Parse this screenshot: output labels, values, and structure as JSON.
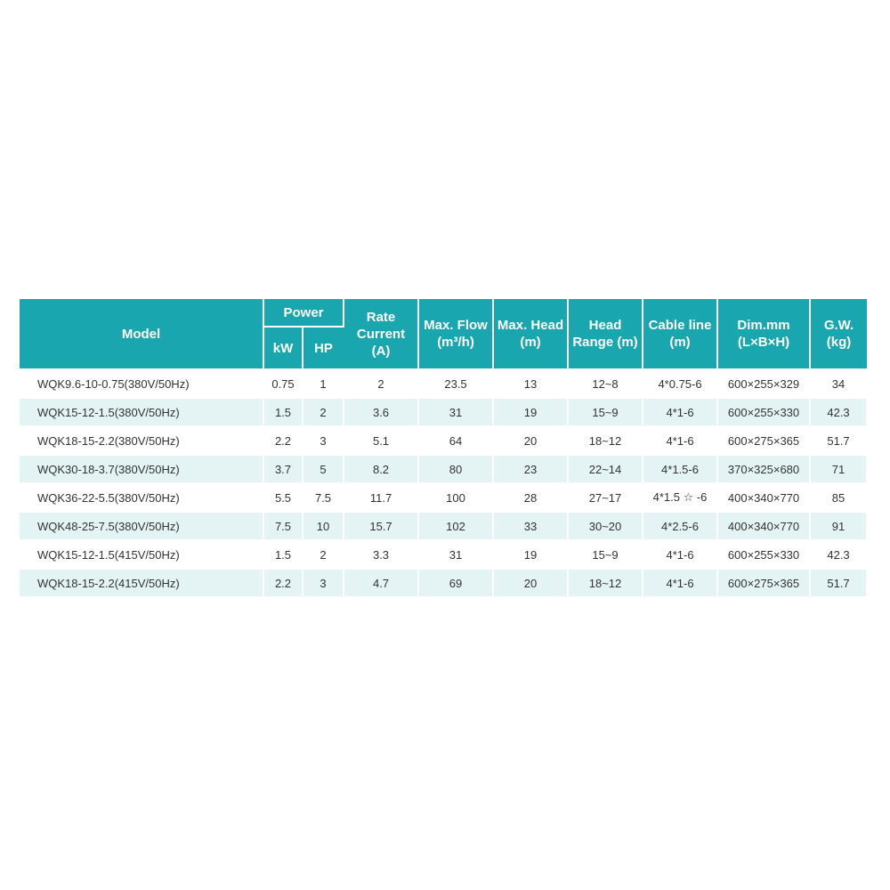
{
  "table": {
    "headers": {
      "model": "Model",
      "power": "Power",
      "kw": "kW",
      "hp": "HP",
      "rate_current": "Rate Current (A)",
      "max_flow": "Max. Flow (m³/h)",
      "max_head": "Max. Head (m)",
      "head_range": "Head Range (m)",
      "cable_line": "Cable line (m)",
      "dim": "Dim.mm (L×B×H)",
      "gw": "G.W. (kg)"
    },
    "rows": [
      [
        "WQK9.6-10-0.75(380V/50Hz)",
        "0.75",
        "1",
        "2",
        "23.5",
        "13",
        "12~8",
        "4*0.75-6",
        "600×255×329",
        "34"
      ],
      [
        "WQK15-12-1.5(380V/50Hz)",
        "1.5",
        "2",
        "3.6",
        "31",
        "19",
        "15~9",
        "4*1-6",
        "600×255×330",
        "42.3"
      ],
      [
        "WQK18-15-2.2(380V/50Hz)",
        "2.2",
        "3",
        "5.1",
        "64",
        "20",
        "18~12",
        "4*1-6",
        "600×275×365",
        "51.7"
      ],
      [
        "WQK30-18-3.7(380V/50Hz)",
        "3.7",
        "5",
        "8.2",
        "80",
        "23",
        "22~14",
        "4*1.5-6",
        "370×325×680",
        "71"
      ],
      [
        "WQK36-22-5.5(380V/50Hz)",
        "5.5",
        "7.5",
        "11.7",
        "100",
        "28",
        "27~17",
        "4*1.5 ☆ -6",
        "400×340×770",
        "85"
      ],
      [
        "WQK48-25-7.5(380V/50Hz)",
        "7.5",
        "10",
        "15.7",
        "102",
        "33",
        "30~20",
        "4*2.5-6",
        "400×340×770",
        "91"
      ],
      [
        "WQK15-12-1.5(415V/50Hz)",
        "1.5",
        "2",
        "3.3",
        "31",
        "19",
        "15~9",
        "4*1-6",
        "600×255×330",
        "42.3"
      ],
      [
        "WQK18-15-2.2(415V/50Hz)",
        "2.2",
        "3",
        "4.7",
        "69",
        "20",
        "18~12",
        "4*1-6",
        "600×275×365",
        "51.7"
      ]
    ]
  },
  "colors": {
    "header_bg": "#1aa6ae",
    "stripe_bg": "#e4f3f4"
  }
}
